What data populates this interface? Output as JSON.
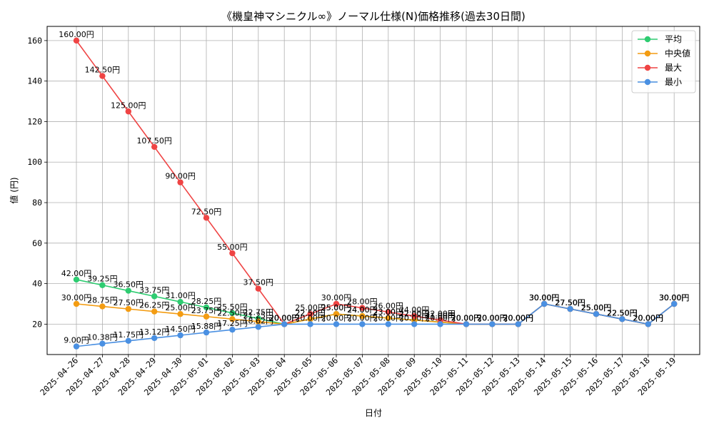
{
  "chart_data": {
    "type": "line",
    "title": "《機皇神マシニクル∞》ノーマル仕様(N)価格推移(過去30日間)",
    "xlabel": "日付",
    "ylabel": "値 (円)",
    "ylim": [
      5,
      167
    ],
    "yticks": [
      20,
      40,
      60,
      80,
      100,
      120,
      140,
      160
    ],
    "grid": true,
    "legend_position": "top-right",
    "label_suffix": "円",
    "categories": [
      "2025-04-26",
      "2025-04-27",
      "2025-04-28",
      "2025-04-29",
      "2025-04-30",
      "2025-05-01",
      "2025-05-02",
      "2025-05-03",
      "2025-05-04",
      "2025-05-05",
      "2025-05-06",
      "2025-05-07",
      "2025-05-08",
      "2025-05-09",
      "2025-05-10",
      "2025-05-11",
      "2025-05-12",
      "2025-05-13",
      "2025-05-14",
      "2025-05-15",
      "2025-05-16",
      "2025-05-17",
      "2025-05-18",
      "2025-05-19"
    ],
    "series": [
      {
        "name": "平均",
        "color": "#2ecc71",
        "values": [
          42,
          39.25,
          36.5,
          33.75,
          31,
          28.25,
          25.5,
          22.75,
          20,
          22.5,
          25,
          24,
          23,
          22,
          21,
          20,
          20,
          20,
          30,
          27.5,
          25,
          22.5,
          20,
          30
        ]
      },
      {
        "name": "中央値",
        "color": "#f39c12",
        "values": [
          30,
          28.75,
          27.5,
          26.25,
          25,
          23.75,
          22.5,
          21.25,
          20,
          22.5,
          25,
          24,
          23,
          22,
          21,
          20,
          20,
          20,
          30,
          27.5,
          25,
          22.5,
          20,
          30
        ]
      },
      {
        "name": "最大",
        "color": "#ef4444",
        "values": [
          160,
          142.5,
          125,
          107.5,
          90,
          72.5,
          55,
          37.5,
          20,
          25,
          30,
          28,
          26,
          24,
          22,
          20,
          20,
          20,
          30,
          27.5,
          25,
          22.5,
          20,
          30
        ]
      },
      {
        "name": "最小",
        "color": "#4a90e2",
        "values": [
          9,
          10.38,
          11.75,
          13.12,
          14.5,
          15.88,
          17.25,
          18.62,
          20,
          20,
          20,
          20,
          20,
          20,
          20,
          20,
          20,
          20,
          30,
          27.5,
          25,
          22.5,
          20,
          30
        ]
      }
    ]
  }
}
